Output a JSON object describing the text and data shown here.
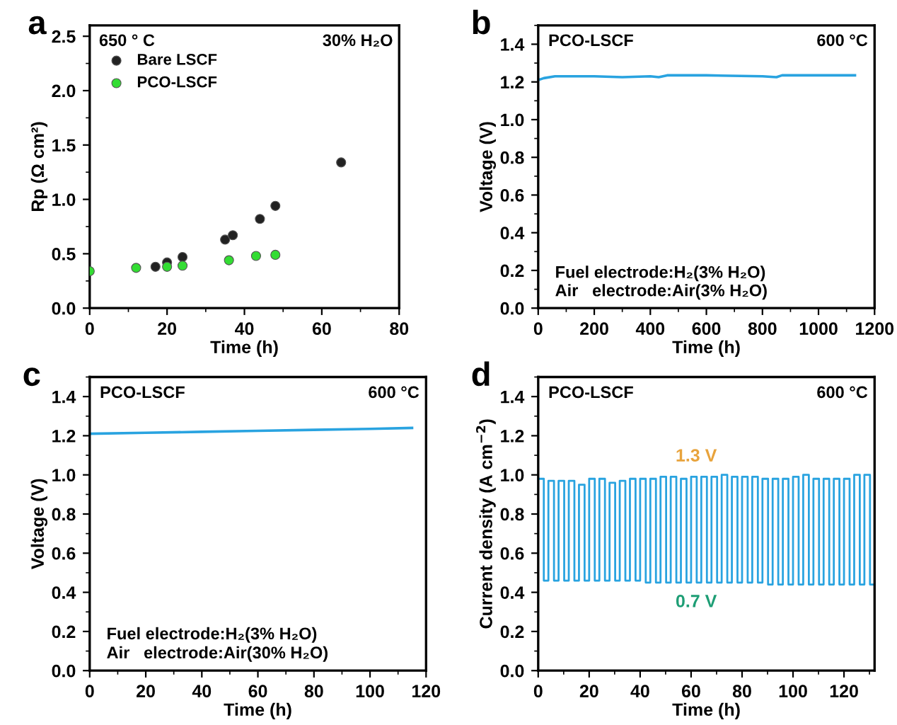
{
  "chart_data": [
    {
      "type": "scatter",
      "xlabel": "Time (h)",
      "ylabel": "Rp (Ω cm²)",
      "xlim": [
        0,
        80
      ],
      "ylim": [
        0,
        2.6
      ],
      "xticks": [
        0,
        20,
        40,
        60,
        80
      ],
      "yticks": [
        {
          "value": 0,
          "label": "0.0"
        },
        0.5,
        {
          "value": 1,
          "label": "1.0"
        },
        1.5,
        {
          "value": 2,
          "label": "2.0"
        },
        2.5
      ],
      "legend": "top left",
      "marker": "circle",
      "annotations": [
        "a",
        "650 ° C",
        "30% H₂O"
      ],
      "series": [
        {
          "name": "Bare LSCF",
          "color": "#222222",
          "x": [
            17,
            20,
            24,
            35,
            37,
            44,
            48,
            65
          ],
          "values": [
            0.38,
            0.42,
            0.47,
            0.63,
            0.67,
            0.82,
            0.94,
            1.34
          ]
        },
        {
          "name": "PCO-LSCF",
          "color": "#33dd33",
          "x": [
            0,
            12,
            20,
            24,
            36,
            43,
            48
          ],
          "values": [
            0.34,
            0.37,
            0.38,
            0.39,
            0.44,
            0.48,
            0.49
          ]
        }
      ]
    },
    {
      "type": "line",
      "xlabel": "Time (h)",
      "ylabel": "Voltage (V)",
      "xlim": [
        0,
        1200
      ],
      "ylim": [
        0,
        1.5
      ],
      "xticks": [
        0,
        200,
        400,
        600,
        800,
        1000,
        1200
      ],
      "yticks": [
        {
          "value": 0,
          "label": "0.0"
        },
        0.2,
        0.4,
        0.6,
        0.8,
        {
          "value": 1,
          "label": "1.0"
        },
        1.2,
        1.4
      ],
      "annotations": [
        "b",
        "PCO-LSCF",
        "600 °C",
        "Fuel electrode:H₂(3% H₂O)",
        "Air   electrode:Air(3% H₂O)"
      ],
      "series": [
        {
          "color": "#29a3e0",
          "x": [
            0,
            20,
            60,
            200,
            300,
            400,
            430,
            460,
            600,
            800,
            850,
            870,
            1000,
            1130
          ],
          "values": [
            1.21,
            1.22,
            1.23,
            1.23,
            1.225,
            1.23,
            1.225,
            1.235,
            1.235,
            1.23,
            1.225,
            1.235,
            1.235,
            1.235
          ]
        }
      ]
    },
    {
      "type": "line",
      "xlabel": "Time (h)",
      "ylabel": "Voltage (V)",
      "xlim": [
        0,
        120
      ],
      "ylim": [
        0,
        1.5
      ],
      "xticks": [
        0,
        20,
        40,
        60,
        80,
        100,
        120
      ],
      "yticks": [
        {
          "value": 0,
          "label": "0.0"
        },
        0.2,
        0.4,
        0.6,
        0.8,
        {
          "value": 1,
          "label": "1.0"
        },
        1.2,
        1.4
      ],
      "annotations": [
        "c",
        "PCO-LSCF",
        "600 °C",
        "Fuel electrode:H₂(3% H₂O)",
        "Air   electrode:Air(30% H₂O)"
      ],
      "series": [
        {
          "color": "#29a3e0",
          "x": [
            0,
            20,
            40,
            60,
            80,
            100,
            115
          ],
          "values": [
            1.21,
            1.215,
            1.22,
            1.225,
            1.23,
            1.235,
            1.24
          ]
        }
      ]
    },
    {
      "type": "step",
      "xlabel": "Time (h)",
      "ylabel": "Current density (A cm$^{−2}$)",
      "xlim": [
        0,
        132
      ],
      "ylim": [
        0,
        1.5
      ],
      "xticks": [
        0,
        20,
        40,
        60,
        80,
        100,
        120
      ],
      "yticks": [
        {
          "value": 0,
          "label": "0.0"
        },
        0.2,
        0.4,
        0.6,
        0.8,
        {
          "value": 1,
          "label": "1.0"
        },
        1.2,
        1.4
      ],
      "annotations": [
        "d",
        "PCO-LSCF",
        "600 °C",
        {
          "text": "1.3 V",
          "x": 62,
          "y": 1.0
        },
        {
          "text": "0.7 V",
          "x": 62,
          "y": 0.44
        }
      ],
      "series": [
        {
          "color": "#29a3e0",
          "x": [
            0,
            2.2,
            4,
            6.2,
            8,
            10.2,
            12,
            14.2,
            16,
            18.2,
            20,
            22.2,
            24,
            26.2,
            28,
            30.2,
            32,
            34.2,
            36,
            38.2,
            40,
            42.2,
            44,
            46.2,
            48,
            50.2,
            52,
            54.2,
            56,
            58.2,
            60,
            62.2,
            64,
            66.2,
            68,
            70.2,
            72,
            74.2,
            76,
            78.2,
            80,
            82.2,
            84,
            86.2,
            88,
            90.2,
            92,
            94.2,
            96,
            98.2,
            100,
            102.2,
            104,
            106.2,
            108,
            110.2,
            112,
            114.2,
            116,
            118.2,
            120,
            122.2,
            124,
            126.2,
            128,
            130.2,
            132
          ],
          "values": [
            0.98,
            0.46,
            0.97,
            0.46,
            0.97,
            0.46,
            0.97,
            0.46,
            0.95,
            0.46,
            0.98,
            0.46,
            0.98,
            0.46,
            0.96,
            0.46,
            0.97,
            0.46,
            0.98,
            0.46,
            0.98,
            0.45,
            0.98,
            0.45,
            0.99,
            0.45,
            0.99,
            0.45,
            0.98,
            0.45,
            0.99,
            0.45,
            0.99,
            0.45,
            0.99,
            0.45,
            1.0,
            0.45,
            0.99,
            0.45,
            0.99,
            0.45,
            0.99,
            0.45,
            0.98,
            0.44,
            0.98,
            0.44,
            0.98,
            0.44,
            0.99,
            0.44,
            1.0,
            0.44,
            0.98,
            0.44,
            0.98,
            0.44,
            0.98,
            0.44,
            0.98,
            0.44,
            1.0,
            0.44,
            1.0,
            0.44,
            0.44
          ]
        }
      ]
    }
  ]
}
